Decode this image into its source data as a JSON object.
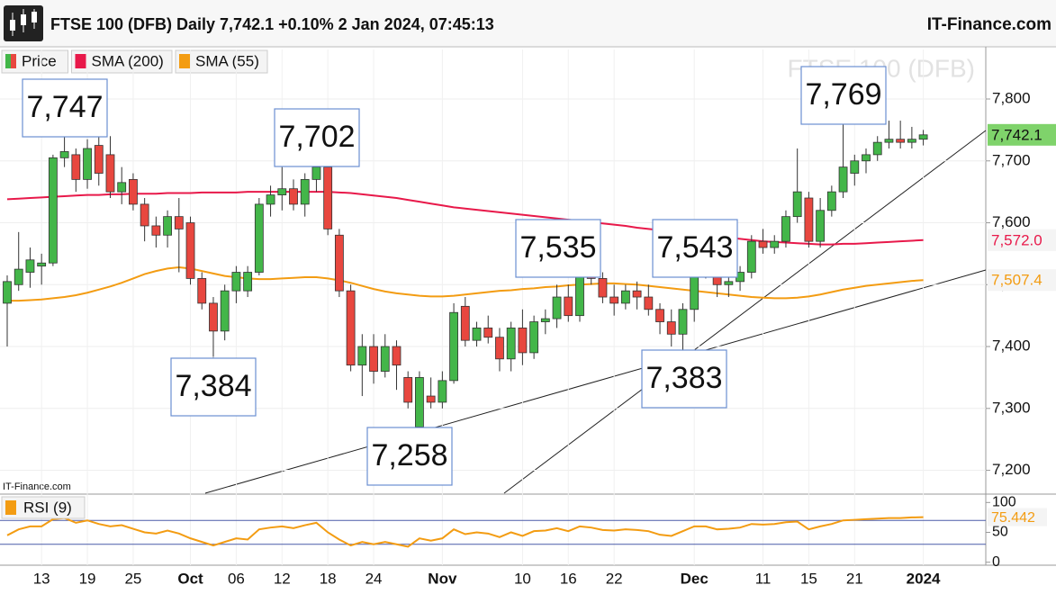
{
  "chart_data": [
    {
      "type": "candlestick",
      "title": "FTSE 100 (DFB) Daily 7,742.1 +0.10% 2 Jan 2024, 07:45:13",
      "source": "IT-Finance.com",
      "watermark": "FTSE 100 (DFB)",
      "credit": "IT-Finance.com",
      "categories": [
        null,
        null,
        null,
        "13",
        null,
        null,
        null,
        "19",
        null,
        null,
        null,
        "25",
        null,
        null,
        null,
        null,
        "Oct",
        null,
        null,
        null,
        "06",
        null,
        null,
        null,
        "12",
        null,
        null,
        null,
        "18",
        null,
        null,
        null,
        "24",
        null,
        null,
        null,
        null,
        null,
        "Nov",
        null,
        null,
        null,
        null,
        null,
        null,
        "10",
        null,
        null,
        null,
        "16",
        null,
        null,
        null,
        "22",
        null,
        null,
        null,
        null,
        null,
        null,
        "Dec",
        null,
        null,
        null,
        null,
        null,
        "11",
        null,
        null,
        null,
        "15",
        null,
        null,
        null,
        "21",
        null,
        null,
        null,
        null,
        null,
        "2024"
      ],
      "ylim": [
        7163,
        7880
      ],
      "yticks": [
        {
          "value": 7200,
          "label": "7,200"
        },
        {
          "value": 7300,
          "label": "7,300"
        },
        {
          "value": 7400,
          "label": "7,400"
        },
        {
          "value": 7500,
          "label": "7,500"
        },
        {
          "value": 7600,
          "label": "7,600"
        },
        {
          "value": 7700,
          "label": "7,700"
        },
        {
          "value": 7800,
          "label": "7,800"
        }
      ],
      "grid": true,
      "series": [
        {
          "name": "Price",
          "type": "candlestick",
          "color": "#43b649",
          "down_color": "#e8473f",
          "last_label": "7,742.1",
          "open": [
            7470,
            7500,
            7520,
            7530,
            7535,
            7705,
            7710,
            7670,
            7725,
            7710,
            7650,
            7670,
            7630,
            7595,
            7580,
            7610,
            7600,
            7510,
            7470,
            7425,
            7490,
            7490,
            7520,
            7630,
            7645,
            7655,
            7630,
            7670,
            7690,
            7580,
            7490,
            7370,
            7400,
            7360,
            7400,
            7350,
            7270,
            7320,
            7310,
            7345,
            7465,
            7410,
            7430,
            7415,
            7380,
            7430,
            7390,
            7440,
            7445,
            7480,
            7450,
            7520,
            7510,
            7480,
            7470,
            7490,
            7480,
            7460,
            7440,
            7420,
            7460,
            7530,
            7520,
            7500,
            7505,
            7520,
            7570,
            7560,
            7570,
            7610,
            7640,
            7570,
            7620,
            7650,
            7680,
            7700,
            7710,
            7730,
            7735,
            7730,
            7735
          ],
          "high": [
            7515,
            7585,
            7560,
            7550,
            7710,
            7747,
            7720,
            7735,
            7745,
            7740,
            7690,
            7680,
            7640,
            7610,
            7620,
            7640,
            7610,
            7520,
            7480,
            7500,
            7530,
            7530,
            7640,
            7660,
            7690,
            7670,
            7680,
            7702,
            7700,
            7590,
            7500,
            7420,
            7420,
            7420,
            7410,
            7360,
            7360,
            7350,
            7360,
            7470,
            7480,
            7440,
            7450,
            7430,
            7440,
            7460,
            7450,
            7460,
            7500,
            7500,
            7535,
            7535,
            7520,
            7500,
            7500,
            7505,
            7500,
            7470,
            7460,
            7470,
            7550,
            7543,
            7530,
            7520,
            7530,
            7580,
            7590,
            7580,
            7620,
            7720,
            7650,
            7640,
            7660,
            7769,
            7710,
            7720,
            7740,
            7765,
            7765,
            7755,
            7750
          ],
          "low": [
            7400,
            7490,
            7495,
            7500,
            7530,
            7690,
            7650,
            7655,
            7660,
            7640,
            7630,
            7620,
            7570,
            7560,
            7560,
            7520,
            7500,
            7460,
            7384,
            7410,
            7470,
            7480,
            7515,
            7610,
            7620,
            7620,
            7610,
            7650,
            7580,
            7480,
            7360,
            7320,
            7340,
            7350,
            7330,
            7300,
            7258,
            7300,
            7300,
            7340,
            7400,
            7400,
            7405,
            7360,
            7360,
            7370,
            7380,
            7420,
            7430,
            7440,
            7440,
            7500,
            7470,
            7450,
            7460,
            7460,
            7450,
            7420,
            7400,
            7383,
            7440,
            7510,
            7480,
            7480,
            7490,
            7510,
            7550,
            7550,
            7560,
            7600,
            7560,
            7560,
            7610,
            7640,
            7660,
            7680,
            7700,
            7720,
            7720,
            7720,
            7725
          ],
          "close": [
            7505,
            7525,
            7540,
            7535,
            7705,
            7715,
            7670,
            7720,
            7680,
            7650,
            7665,
            7630,
            7595,
            7580,
            7610,
            7590,
            7510,
            7470,
            7425,
            7490,
            7520,
            7520,
            7630,
            7645,
            7655,
            7630,
            7670,
            7690,
            7590,
            7490,
            7370,
            7400,
            7360,
            7400,
            7370,
            7310,
            7350,
            7310,
            7345,
            7455,
            7410,
            7430,
            7415,
            7380,
            7430,
            7390,
            7440,
            7445,
            7480,
            7450,
            7520,
            7510,
            7480,
            7470,
            7490,
            7480,
            7460,
            7440,
            7420,
            7460,
            7530,
            7520,
            7500,
            7505,
            7520,
            7570,
            7560,
            7570,
            7610,
            7650,
            7570,
            7620,
            7650,
            7690,
            7700,
            7710,
            7730,
            7735,
            7730,
            7735,
            7742.1
          ]
        },
        {
          "name": "SMA (200)",
          "type": "line",
          "color": "#e8194a",
          "last_label": "7,572.0",
          "values": [
            7638,
            7639,
            7640,
            7641,
            7642,
            7643,
            7644,
            7645,
            7645,
            7646,
            7646,
            7647,
            7647,
            7647,
            7648,
            7648,
            7648,
            7649,
            7649,
            7649,
            7649,
            7650,
            7650,
            7650,
            7650,
            7650,
            7650,
            7650,
            7650,
            7649,
            7648,
            7646,
            7644,
            7642,
            7640,
            7637,
            7634,
            7631,
            7628,
            7625,
            7623,
            7621,
            7619,
            7617,
            7615,
            7613,
            7611,
            7609,
            7607,
            7605,
            7603,
            7601,
            7599,
            7597,
            7595,
            7592,
            7590,
            7588,
            7586,
            7584,
            7582,
            7580,
            7578,
            7576,
            7574,
            7572,
            7570,
            7569,
            7568,
            7567,
            7566,
            7565,
            7565,
            7566,
            7566,
            7567,
            7568,
            7569,
            7570,
            7571,
            7572
          ]
        },
        {
          "name": "SMA (55)",
          "type": "line",
          "color": "#f39c12",
          "last_label": "7,507.4",
          "values": [
            7474,
            7474,
            7475,
            7476,
            7478,
            7480,
            7483,
            7487,
            7492,
            7497,
            7503,
            7510,
            7517,
            7522,
            7526,
            7528,
            7526,
            7522,
            7518,
            7514,
            7512,
            7510,
            7509,
            7509,
            7510,
            7511,
            7512,
            7512,
            7510,
            7507,
            7503,
            7498,
            7493,
            7489,
            7486,
            7484,
            7482,
            7481,
            7481,
            7482,
            7484,
            7486,
            7488,
            7490,
            7491,
            7493,
            7494,
            7496,
            7497,
            7499,
            7500,
            7501,
            7502,
            7502,
            7501,
            7500,
            7498,
            7496,
            7494,
            7492,
            7490,
            7488,
            7486,
            7484,
            7482,
            7480,
            7479,
            7478,
            7478,
            7479,
            7481,
            7484,
            7488,
            7492,
            7495,
            7498,
            7500,
            7502,
            7504,
            7506,
            7507.4
          ]
        }
      ],
      "annotations": [
        {
          "value": 7747,
          "label": "7,747"
        },
        {
          "value": 7702,
          "label": "7,702"
        },
        {
          "value": 7384,
          "label": "7,384"
        },
        {
          "value": 7258,
          "label": "7,258"
        },
        {
          "value": 7535,
          "label": "7,535"
        },
        {
          "value": 7543,
          "label": "7,543"
        },
        {
          "value": 7383,
          "label": "7,383"
        },
        {
          "value": 7769,
          "label": "7,769"
        }
      ]
    },
    {
      "type": "line",
      "name": "RSI (9)",
      "color": "#f39c12",
      "last_label": "75.442",
      "ylim": [
        -5,
        105
      ],
      "yticks": [
        0,
        50,
        100
      ],
      "levels": [
        30,
        70
      ],
      "values": [
        45,
        55,
        60,
        60,
        72,
        74,
        66,
        70,
        64,
        60,
        62,
        56,
        50,
        48,
        53,
        48,
        40,
        34,
        28,
        34,
        40,
        38,
        55,
        58,
        60,
        57,
        62,
        66,
        50,
        38,
        28,
        34,
        30,
        34,
        30,
        26,
        40,
        36,
        40,
        55,
        47,
        50,
        48,
        42,
        50,
        44,
        52,
        53,
        57,
        52,
        60,
        58,
        54,
        53,
        55,
        54,
        52,
        46,
        44,
        52,
        60,
        60,
        55,
        56,
        58,
        64,
        63,
        64,
        67,
        68,
        55,
        60,
        64,
        70,
        71,
        72,
        73,
        74,
        74,
        75,
        75.442
      ]
    }
  ]
}
